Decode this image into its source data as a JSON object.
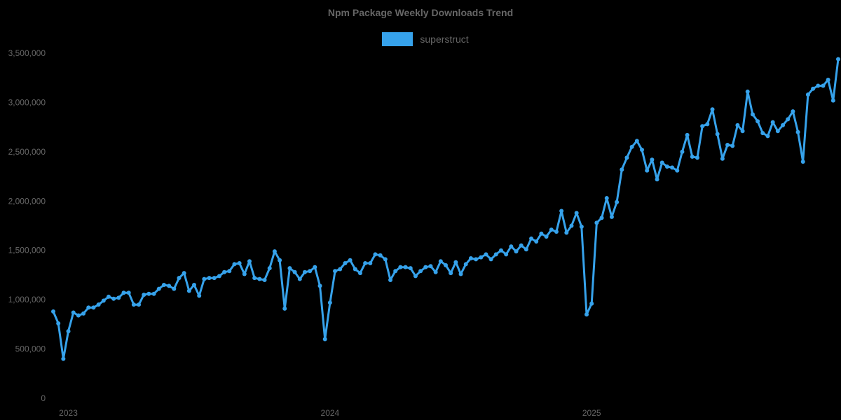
{
  "chart_data": {
    "type": "line",
    "title": "Npm Package Weekly Downloads Trend",
    "xlabel": "",
    "ylabel": "",
    "ylim": [
      0,
      3500000
    ],
    "grid": false,
    "legend_position": "top",
    "y_ticks": [
      "0",
      "500,000",
      "1,000,000",
      "1,500,000",
      "2,000,000",
      "2,500,000",
      "3,000,000",
      "3,500,000"
    ],
    "x_ticks": [
      {
        "label": "2023",
        "index": 3
      },
      {
        "label": "2024",
        "index": 55
      },
      {
        "label": "2025",
        "index": 107
      }
    ],
    "series": [
      {
        "name": "superstruct",
        "color": "#36a2eb",
        "values": [
          880000,
          760000,
          400000,
          680000,
          870000,
          840000,
          860000,
          920000,
          920000,
          950000,
          990000,
          1030000,
          1010000,
          1020000,
          1070000,
          1070000,
          950000,
          950000,
          1050000,
          1060000,
          1060000,
          1110000,
          1150000,
          1140000,
          1110000,
          1220000,
          1270000,
          1090000,
          1150000,
          1040000,
          1210000,
          1220000,
          1220000,
          1240000,
          1280000,
          1290000,
          1360000,
          1370000,
          1260000,
          1390000,
          1220000,
          1210000,
          1200000,
          1320000,
          1490000,
          1400000,
          910000,
          1320000,
          1280000,
          1210000,
          1280000,
          1290000,
          1330000,
          1140000,
          600000,
          970000,
          1290000,
          1310000,
          1370000,
          1400000,
          1310000,
          1270000,
          1370000,
          1370000,
          1460000,
          1450000,
          1410000,
          1200000,
          1290000,
          1330000,
          1330000,
          1320000,
          1240000,
          1290000,
          1330000,
          1340000,
          1280000,
          1390000,
          1350000,
          1270000,
          1380000,
          1260000,
          1360000,
          1420000,
          1410000,
          1430000,
          1460000,
          1410000,
          1460000,
          1500000,
          1460000,
          1540000,
          1490000,
          1550000,
          1510000,
          1620000,
          1590000,
          1670000,
          1640000,
          1710000,
          1690000,
          1900000,
          1680000,
          1750000,
          1880000,
          1740000,
          850000,
          960000,
          1780000,
          1830000,
          2030000,
          1840000,
          1990000,
          2320000,
          2440000,
          2550000,
          2610000,
          2520000,
          2310000,
          2420000,
          2220000,
          2390000,
          2350000,
          2340000,
          2310000,
          2500000,
          2670000,
          2450000,
          2440000,
          2760000,
          2780000,
          2930000,
          2680000,
          2430000,
          2570000,
          2560000,
          2770000,
          2710000,
          3110000,
          2880000,
          2810000,
          2690000,
          2660000,
          2800000,
          2710000,
          2770000,
          2830000,
          2910000,
          2700000,
          2400000,
          3080000,
          3140000,
          3170000,
          3170000,
          3230000,
          3020000,
          3440000
        ]
      }
    ]
  },
  "legend": {
    "label": "superstruct",
    "color": "#36a2eb"
  }
}
